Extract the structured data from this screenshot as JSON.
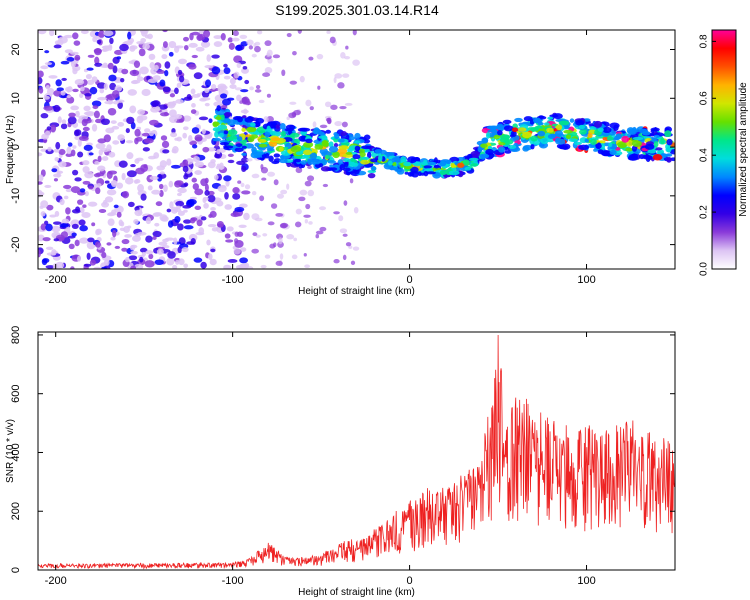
{
  "figure_title": "S199.2025.301.03.14.R14",
  "chart_data": [
    {
      "type": "heatmap",
      "title": "S199.2025.301.03.14.R14",
      "xlabel": "Height of straight line (km)",
      "ylabel": "Frequency (Hz)",
      "xlim": [
        -210,
        150
      ],
      "ylim": [
        -25,
        24
      ],
      "xticks": [
        -200,
        -100,
        0,
        100
      ],
      "xtick_labels": [
        "-200",
        "-100",
        "0",
        "100"
      ],
      "yticks": [
        -20,
        -10,
        0,
        10,
        20
      ],
      "ytick_labels": [
        "-20",
        "-10",
        "0",
        "10",
        "20"
      ],
      "grid": false,
      "noise_region_x": [
        -210,
        -100
      ],
      "ridge_center": {
        "x": [
          -110,
          -100,
          -80,
          -60,
          -40,
          -20,
          0,
          20,
          35,
          45,
          60,
          80,
          100,
          120,
          150
        ],
        "y": [
          5,
          3,
          1,
          0,
          -1,
          -2,
          -4,
          -4.5,
          -3.5,
          1,
          2.5,
          3.5,
          2.5,
          1,
          0.5
        ]
      },
      "colorbar": {
        "label": "Normalized spectral amplitude",
        "range": [
          0.0,
          0.84
        ],
        "ticks": [
          0.0,
          0.2,
          0.4,
          0.6,
          0.8
        ],
        "tick_labels": [
          "0.0",
          "0.2",
          "0.4",
          "0.6",
          "0.8"
        ],
        "colors": [
          "#ffffff",
          "#ddc4f4",
          "#8a3bd9",
          "#3300e6",
          "#0000ff",
          "#0088ff",
          "#00dddd",
          "#00e68a",
          "#66e000",
          "#d0e600",
          "#ffb300",
          "#ff5000",
          "#ff0000",
          "#ff0099"
        ]
      }
    },
    {
      "type": "line",
      "xlabel": "Height of straight line (km)",
      "ylabel": "SNR (10 * v/v)",
      "xlim": [
        -210,
        150
      ],
      "ylim": [
        0,
        810
      ],
      "xticks": [
        -200,
        -100,
        0,
        100
      ],
      "xtick_labels": [
        "-200",
        "-100",
        "0",
        "100"
      ],
      "yticks": [
        0,
        200,
        400,
        600,
        800
      ],
      "ytick_labels": [
        "0",
        "200",
        "400",
        "600",
        "800"
      ],
      "grid": false,
      "series": [
        {
          "name": "SNR",
          "color": "#ee2222",
          "x": [
            -210,
            -180,
            -150,
            -120,
            -100,
            -90,
            -85,
            -80,
            -75,
            -70,
            -60,
            -50,
            -40,
            -35,
            -30,
            -20,
            -10,
            0,
            10,
            20,
            30,
            40,
            45,
            50,
            55,
            60,
            70,
            80,
            90,
            100,
            110,
            120,
            130,
            140,
            150
          ],
          "y": [
            20,
            22,
            22,
            24,
            25,
            40,
            75,
            95,
            70,
            45,
            40,
            55,
            85,
            110,
            100,
            140,
            180,
            240,
            270,
            290,
            330,
            370,
            560,
            800,
            480,
            620,
            560,
            520,
            480,
            500,
            460,
            520,
            480,
            460,
            440
          ]
        }
      ]
    }
  ]
}
